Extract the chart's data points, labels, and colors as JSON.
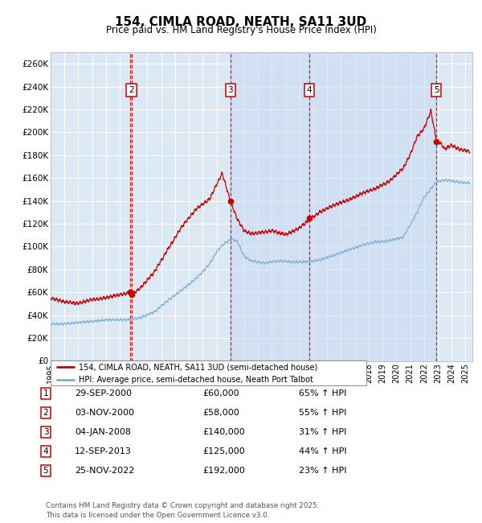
{
  "title": "154, CIMLA ROAD, NEATH, SA11 3UD",
  "subtitle": "Price paid vs. HM Land Registry's House Price Index (HPI)",
  "xlim_start": 1995.0,
  "xlim_end": 2025.5,
  "ylim_min": 0,
  "ylim_max": 270000,
  "yticks": [
    0,
    20000,
    40000,
    60000,
    80000,
    100000,
    120000,
    140000,
    160000,
    180000,
    200000,
    220000,
    240000,
    260000
  ],
  "ytick_labels": [
    "£0",
    "£20K",
    "£40K",
    "£60K",
    "£80K",
    "£100K",
    "£120K",
    "£140K",
    "£160K",
    "£180K",
    "£200K",
    "£220K",
    "£240K",
    "£260K"
  ],
  "plot_bg_color": "#dce9f5",
  "grid_color": "#ffffff",
  "red_line_color": "#cc0000",
  "blue_line_color": "#7bafd4",
  "dashed_line_color": "#cc0000",
  "shade_color": "#c8d8f0",
  "transactions": [
    {
      "num": 1,
      "date_x": 2000.747,
      "price": 60000,
      "label": "1",
      "date_str": "29-SEP-2000",
      "price_str": "£60,000",
      "hpi_str": "65% ↑ HPI"
    },
    {
      "num": 2,
      "date_x": 2000.843,
      "price": 58000,
      "label": "2",
      "date_str": "03-NOV-2000",
      "price_str": "£58,000",
      "hpi_str": "55% ↑ HPI"
    },
    {
      "num": 3,
      "date_x": 2008.01,
      "price": 140000,
      "label": "3",
      "date_str": "04-JAN-2008",
      "price_str": "£140,000",
      "hpi_str": "31% ↑ HPI"
    },
    {
      "num": 4,
      "date_x": 2013.7,
      "price": 125000,
      "label": "4",
      "date_str": "12-SEP-2013",
      "price_str": "£125,000",
      "hpi_str": "44% ↑ HPI"
    },
    {
      "num": 5,
      "date_x": 2022.9,
      "price": 192000,
      "label": "5",
      "date_str": "25-NOV-2022",
      "price_str": "£192,000",
      "hpi_str": "23% ↑ HPI"
    }
  ],
  "legend_line1": "154, CIMLA ROAD, NEATH, SA11 3UD (semi-detached house)",
  "legend_line2": "HPI: Average price, semi-detached house, Neath Port Talbot",
  "footer": "Contains HM Land Registry data © Crown copyright and database right 2025.\nThis data is licensed under the Open Government Licence v3.0."
}
